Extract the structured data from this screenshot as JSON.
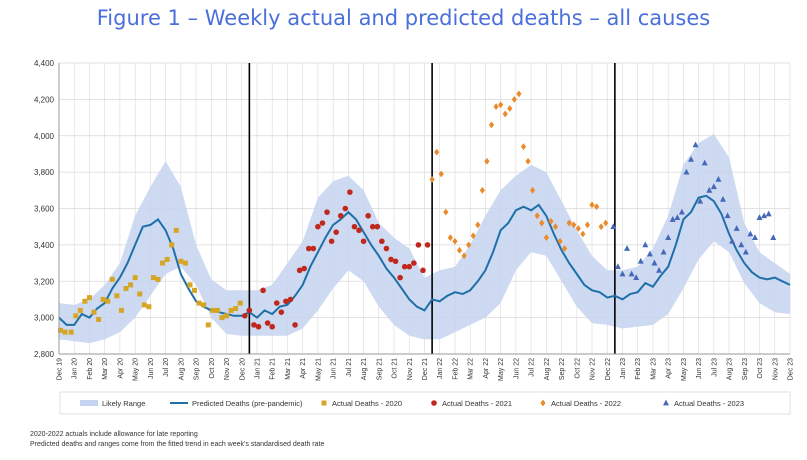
{
  "chart_data": {
    "type": "line",
    "title": "Figure 1 – Weekly actual and predicted deaths – all causes",
    "xlabel": "",
    "ylabel": "",
    "ylim": [
      2800,
      4400
    ],
    "yticks": [
      "2,800",
      "3,000",
      "3,200",
      "3,400",
      "3,600",
      "3,800",
      "4,000",
      "4,200",
      "4,400"
    ],
    "xticks": [
      "Dec 19",
      "Jan 20",
      "Feb 20",
      "Mar 20",
      "Apr 20",
      "May 20",
      "Jun 20",
      "Jul 20",
      "Aug 20",
      "Sep 20",
      "Oct 20",
      "Nov 20",
      "Dec 20",
      "Jan 21",
      "Feb 21",
      "Mar 21",
      "Apr 21",
      "May 21",
      "Jun 21",
      "Jul 21",
      "Aug 21",
      "Sep 21",
      "Oct 21",
      "Nov 21",
      "Dec 21",
      "Jan 22",
      "Feb 22",
      "Mar 22",
      "Apr 22",
      "May 22",
      "Jun 22",
      "Jul 22",
      "Aug 22",
      "Sep 22",
      "Oct 22",
      "Nov 22",
      "Dec 22",
      "Jan 23",
      "Feb 23",
      "Mar 23",
      "Apr 23",
      "May 23",
      "Jun 23",
      "Jul 23",
      "Aug 23",
      "Sep 23",
      "Oct 23",
      "Nov 23",
      "Dec 23"
    ],
    "year_dividers": [
      12.5,
      24.5,
      36.5
    ],
    "grid": true,
    "legend_position": "bottom",
    "legend": [
      "Likely Range",
      "Predicted Deaths (pre-pandemic)",
      "Actual Deaths - 2020",
      "Actual Deaths - 2021",
      "Actual Deaths - 2022",
      "Actual Deaths - 2023"
    ],
    "colors": {
      "band": "#c5d3f0",
      "line": "#1f6fa8",
      "y2020": "#d6a525",
      "y2021": "#c0281e",
      "y2022": "#ea8a2a",
      "y2023": "#4568b8",
      "divider": "#000000",
      "grid": "#d9d9d9"
    },
    "predicted": {
      "x": [
        0,
        0.5,
        1,
        1.5,
        2,
        2.5,
        3,
        3.5,
        4,
        4.5,
        5,
        5.5,
        6,
        6.5,
        7,
        7.5,
        8,
        8.5,
        9,
        9.5,
        10,
        10.5,
        11,
        11.5,
        12,
        12.5,
        13,
        13.5,
        14,
        14.5,
        15,
        15.5,
        16,
        16.5,
        17,
        17.5,
        18,
        18.5,
        19,
        19.5,
        20,
        20.5,
        21,
        21.5,
        22,
        22.5,
        23,
        23.5,
        24,
        24.5,
        25,
        25.5,
        26,
        26.5,
        27,
        27.5,
        28,
        28.5,
        29,
        29.5,
        30,
        30.5,
        31,
        31.5,
        32,
        32.5,
        33,
        33.5,
        34,
        34.5,
        35,
        35.5,
        36,
        36.5,
        37,
        37.5,
        38,
        38.5,
        39,
        39.5,
        40,
        40.5,
        41,
        41.5,
        42,
        42.5,
        43,
        43.5,
        44,
        44.5,
        45,
        45.5,
        46,
        46.5,
        47,
        47.5,
        48
      ],
      "y": [
        3000,
        2960,
        2960,
        3020,
        3000,
        3050,
        3080,
        3160,
        3220,
        3300,
        3400,
        3500,
        3510,
        3540,
        3480,
        3380,
        3240,
        3160,
        3090,
        3060,
        3040,
        3030,
        3020,
        3010,
        3010,
        3030,
        3000,
        3040,
        3020,
        3060,
        3070,
        3120,
        3180,
        3280,
        3360,
        3440,
        3510,
        3540,
        3580,
        3540,
        3470,
        3400,
        3340,
        3270,
        3220,
        3160,
        3100,
        3060,
        3040,
        3100,
        3090,
        3120,
        3140,
        3130,
        3150,
        3200,
        3260,
        3360,
        3480,
        3520,
        3590,
        3610,
        3590,
        3620,
        3560,
        3460,
        3370,
        3300,
        3240,
        3180,
        3150,
        3140,
        3110,
        3120,
        3100,
        3130,
        3140,
        3190,
        3170,
        3230,
        3280,
        3400,
        3540,
        3580,
        3660,
        3670,
        3640,
        3570,
        3460,
        3370,
        3300,
        3250,
        3220,
        3210,
        3220,
        3200,
        3180
      ]
    },
    "likely_range": {
      "x": [
        0,
        1,
        2,
        3,
        4,
        5,
        6,
        7,
        8,
        9,
        10,
        11,
        12,
        13,
        14,
        15,
        16,
        17,
        18,
        19,
        20,
        21,
        22,
        23,
        24,
        25,
        26,
        27,
        28,
        29,
        30,
        31,
        32,
        33,
        34,
        35,
        36,
        37,
        38,
        39,
        40,
        41,
        42,
        43,
        44,
        45,
        46,
        47,
        48
      ],
      "lower": [
        2880,
        2870,
        2860,
        2880,
        2920,
        3000,
        3120,
        3240,
        3280,
        3180,
        3000,
        2910,
        2900,
        2900,
        2900,
        2900,
        2940,
        3040,
        3160,
        3260,
        3200,
        3060,
        2960,
        2900,
        2880,
        2880,
        2920,
        2960,
        3000,
        3080,
        3260,
        3360,
        3340,
        3200,
        3060,
        2970,
        2960,
        2940,
        2950,
        2960,
        3020,
        3160,
        3320,
        3420,
        3360,
        3190,
        3080,
        3030,
        3020
      ],
      "upper": [
        3080,
        3070,
        3100,
        3180,
        3300,
        3560,
        3720,
        3860,
        3720,
        3400,
        3210,
        3150,
        3150,
        3150,
        3180,
        3300,
        3420,
        3660,
        3750,
        3780,
        3700,
        3520,
        3440,
        3380,
        3220,
        3260,
        3280,
        3400,
        3560,
        3700,
        3780,
        3840,
        3800,
        3640,
        3480,
        3340,
        3260,
        3260,
        3280,
        3380,
        3560,
        3840,
        3960,
        4010,
        3880,
        3520,
        3360,
        3300,
        3240
      ]
    },
    "series": [
      {
        "name": "Actual Deaths - 2020",
        "marker": "square",
        "x": [
          0.1,
          0.4,
          0.8,
          1.1,
          1.4,
          1.7,
          2.0,
          2.3,
          2.6,
          2.9,
          3.2,
          3.5,
          3.8,
          4.1,
          4.4,
          4.7,
          5.0,
          5.3,
          5.6,
          5.9,
          6.2,
          6.5,
          6.8,
          7.1,
          7.4,
          7.7,
          8.0,
          8.3,
          8.6,
          8.9,
          9.2,
          9.5,
          9.8,
          10.1,
          10.4,
          10.7,
          11.0,
          11.3,
          11.6,
          11.9
        ],
        "y": [
          2930,
          2920,
          2920,
          3010,
          3040,
          3090,
          3110,
          3030,
          2990,
          3100,
          3090,
          3210,
          3120,
          3040,
          3160,
          3180,
          3220,
          3130,
          3070,
          3060,
          3220,
          3210,
          3300,
          3320,
          3400,
          3480,
          3310,
          3300,
          3180,
          3150,
          3080,
          3070,
          2960,
          3040,
          3040,
          3000,
          3010,
          3040,
          3050,
          3080
        ]
      },
      {
        "name": "Actual Deaths - 2021",
        "marker": "circle",
        "x": [
          12.2,
          12.5,
          12.8,
          13.1,
          13.4,
          13.7,
          14.0,
          14.3,
          14.6,
          14.9,
          15.2,
          15.5,
          15.8,
          16.1,
          16.4,
          16.7,
          17.0,
          17.3,
          17.6,
          17.9,
          18.2,
          18.5,
          18.8,
          19.1,
          19.4,
          19.7,
          20.0,
          20.3,
          20.6,
          20.9,
          21.2,
          21.5,
          21.8,
          22.1,
          22.4,
          22.7,
          23.0,
          23.3,
          23.6,
          23.9,
          24.2
        ],
        "y": [
          3010,
          3040,
          2960,
          2950,
          3150,
          2970,
          2950,
          3080,
          3030,
          3090,
          3100,
          2960,
          3260,
          3270,
          3380,
          3380,
          3500,
          3520,
          3580,
          3420,
          3470,
          3560,
          3600,
          3690,
          3500,
          3480,
          3420,
          3560,
          3500,
          3500,
          3420,
          3380,
          3320,
          3310,
          3220,
          3280,
          3280,
          3300,
          3400,
          3260,
          3400
        ]
      },
      {
        "name": "Actual Deaths - 2022",
        "marker": "diamond",
        "x": [
          24.5,
          24.8,
          25.1,
          25.4,
          25.7,
          26.0,
          26.3,
          26.6,
          26.9,
          27.2,
          27.5,
          27.8,
          28.1,
          28.4,
          28.7,
          29.0,
          29.3,
          29.6,
          29.9,
          30.2,
          30.5,
          30.8,
          31.1,
          31.4,
          31.7,
          32.0,
          32.3,
          32.6,
          32.9,
          33.2,
          33.5,
          33.8,
          34.1,
          34.4,
          34.7,
          35.0,
          35.3,
          35.6,
          35.9
        ],
        "y": [
          3760,
          3910,
          3790,
          3580,
          3440,
          3420,
          3370,
          3340,
          3400,
          3450,
          3510,
          3700,
          3860,
          4060,
          4160,
          4170,
          4120,
          4150,
          4200,
          4230,
          3940,
          3860,
          3700,
          3560,
          3520,
          3440,
          3530,
          3500,
          3420,
          3380,
          3520,
          3510,
          3490,
          3460,
          3510,
          3620,
          3610,
          3500,
          3520
        ]
      },
      {
        "name": "Actual Deaths - 2023",
        "marker": "triangle",
        "x": [
          36.4,
          36.7,
          37.0,
          37.3,
          37.6,
          37.9,
          38.2,
          38.5,
          38.8,
          39.1,
          39.4,
          39.7,
          40.0,
          40.3,
          40.6,
          40.9,
          41.2,
          41.5,
          41.8,
          42.1,
          42.4,
          42.7,
          43.0,
          43.3,
          43.6,
          43.9,
          44.2,
          44.5,
          44.8,
          45.1,
          45.4,
          45.7,
          46.0,
          46.3,
          46.6,
          46.9
        ],
        "y": [
          3500,
          3280,
          3240,
          3380,
          3240,
          3220,
          3310,
          3400,
          3350,
          3300,
          3260,
          3360,
          3440,
          3540,
          3550,
          3580,
          3800,
          3870,
          3950,
          3640,
          3850,
          3700,
          3720,
          3760,
          3650,
          3560,
          3420,
          3490,
          3400,
          3360,
          3460,
          3440,
          3550,
          3560,
          3570,
          3440
        ]
      }
    ]
  },
  "notes": [
    "2020-2022  actuals include allowance for late reporting",
    "Predicted deaths and ranges come from the fitted trend in each week's standardised death rate"
  ]
}
